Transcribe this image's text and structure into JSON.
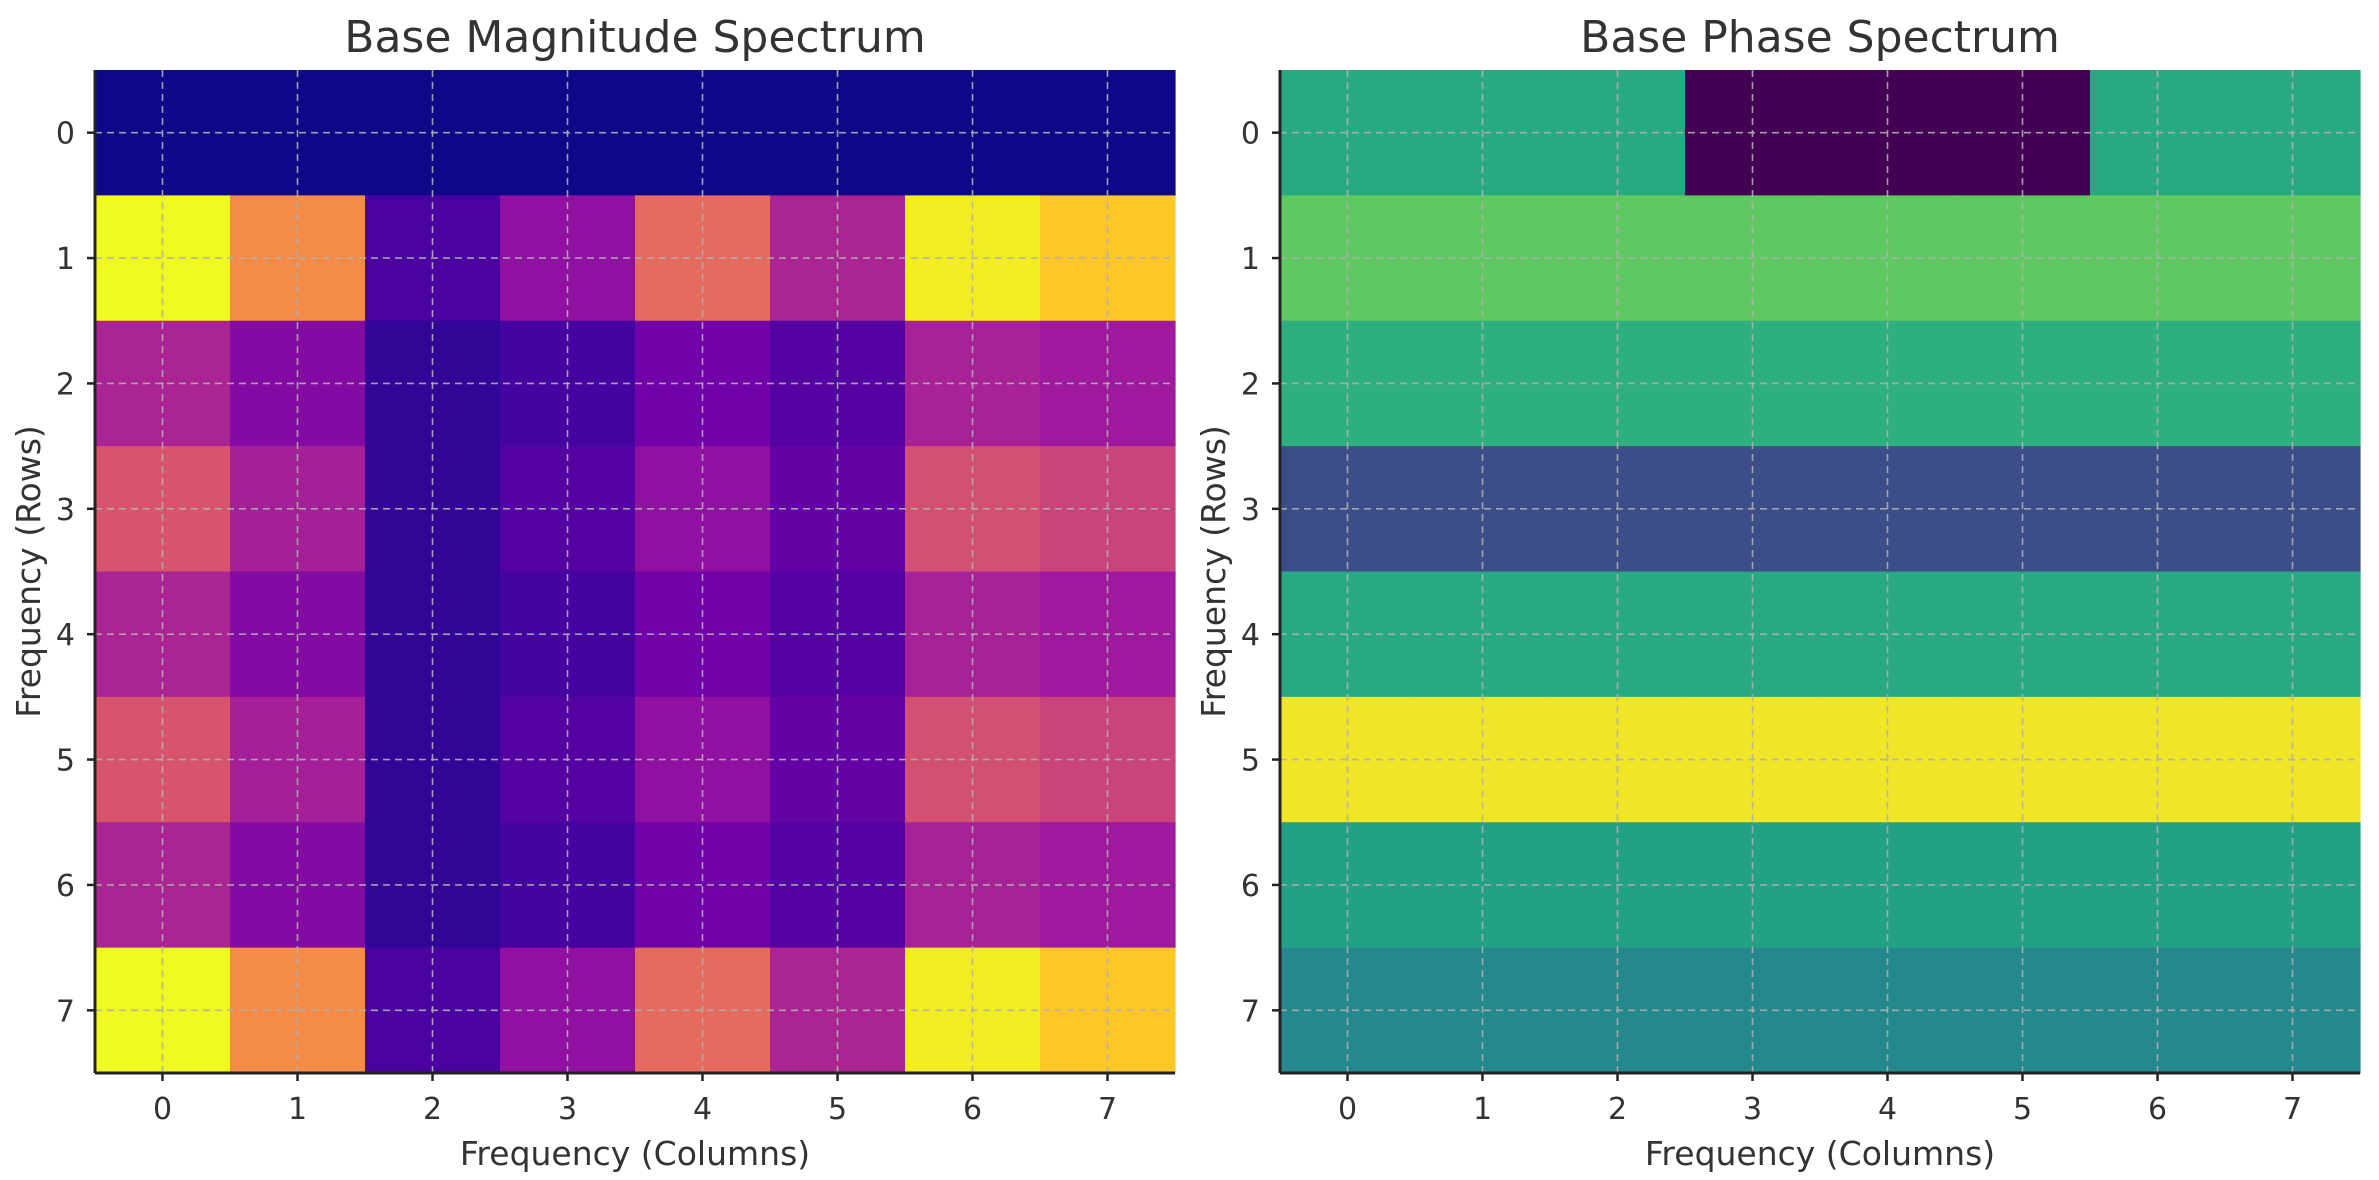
{
  "chart_data": [
    {
      "type": "heatmap",
      "title": "Base Magnitude Spectrum",
      "xlabel": "Frequency (Columns)",
      "ylabel": "Frequency (Rows)",
      "x_ticks": [
        "0",
        "1",
        "2",
        "3",
        "4",
        "5",
        "6",
        "7"
      ],
      "y_ticks": [
        "0",
        "1",
        "2",
        "3",
        "4",
        "5",
        "6",
        "7"
      ],
      "colormap": "plasma",
      "grid": true,
      "values": [
        [
          0.0,
          0.0,
          0.0,
          0.0,
          0.0,
          0.0,
          0.0,
          0.0
        ],
        [
          1.0,
          0.72,
          0.12,
          0.3,
          0.62,
          0.38,
          0.97,
          0.88
        ],
        [
          0.38,
          0.27,
          0.07,
          0.11,
          0.22,
          0.15,
          0.37,
          0.34
        ],
        [
          0.55,
          0.36,
          0.07,
          0.15,
          0.3,
          0.19,
          0.53,
          0.49
        ],
        [
          0.38,
          0.27,
          0.07,
          0.11,
          0.22,
          0.15,
          0.37,
          0.34
        ],
        [
          0.55,
          0.36,
          0.07,
          0.15,
          0.3,
          0.19,
          0.53,
          0.49
        ],
        [
          0.38,
          0.27,
          0.07,
          0.11,
          0.22,
          0.15,
          0.37,
          0.34
        ],
        [
          1.0,
          0.72,
          0.12,
          0.3,
          0.62,
          0.38,
          0.97,
          0.88
        ]
      ]
    },
    {
      "type": "heatmap",
      "title": "Base Phase Spectrum",
      "xlabel": "Frequency (Columns)",
      "ylabel": "Frequency (Rows)",
      "x_ticks": [
        "0",
        "1",
        "2",
        "3",
        "4",
        "5",
        "6",
        "7"
      ],
      "y_ticks": [
        "0",
        "1",
        "2",
        "3",
        "4",
        "5",
        "6",
        "7"
      ],
      "colormap": "viridis",
      "grid": true,
      "values": [
        [
          0.6,
          0.6,
          0.6,
          0.0,
          0.0,
          0.0,
          0.6,
          0.6
        ],
        [
          0.75,
          0.75,
          0.75,
          0.75,
          0.75,
          0.75,
          0.75,
          0.75
        ],
        [
          0.63,
          0.63,
          0.63,
          0.63,
          0.63,
          0.63,
          0.63,
          0.63
        ],
        [
          0.24,
          0.24,
          0.24,
          0.24,
          0.24,
          0.24,
          0.24,
          0.24
        ],
        [
          0.6,
          0.6,
          0.6,
          0.6,
          0.6,
          0.6,
          0.6,
          0.6
        ],
        [
          0.98,
          0.98,
          0.98,
          0.98,
          0.98,
          0.98,
          0.98,
          0.98
        ],
        [
          0.57,
          0.57,
          0.57,
          0.57,
          0.57,
          0.57,
          0.57,
          0.57
        ],
        [
          0.47,
          0.47,
          0.47,
          0.47,
          0.47,
          0.47,
          0.47,
          0.47
        ]
      ]
    }
  ]
}
